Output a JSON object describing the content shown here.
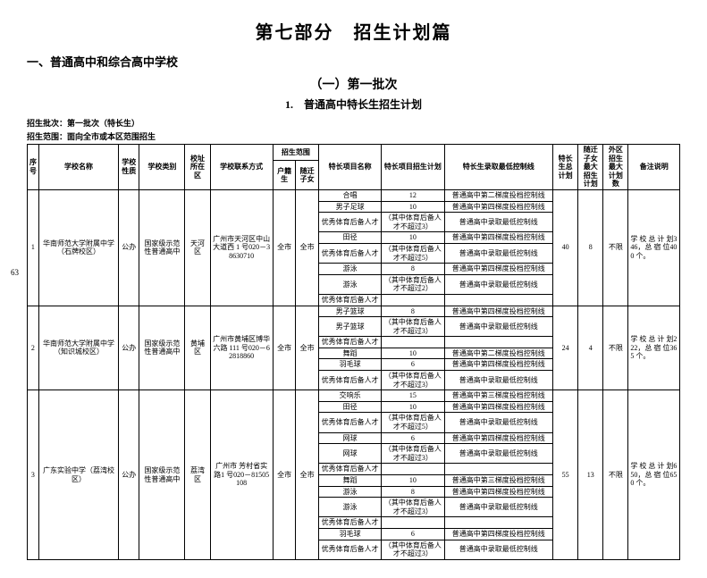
{
  "title_main": "第七部分　招生计划篇",
  "h2": "一、普通高中和综合高中学校",
  "h3": "（一）第一批次",
  "h4": "1.　普通高中特长生招生计划",
  "meta1": "招生批次：第一批次（特长生）",
  "meta2": "招生范围：面向全市或本区范围招生",
  "page_num": "63",
  "head": {
    "idx": "序号",
    "school": "学校名称",
    "nature": "学校性质",
    "type": "学校类别",
    "loc": "校址所在区",
    "contact": "学校联系方式",
    "scope": "招生范围",
    "scope_hk": "户籍生",
    "scope_sz": "随迁子女",
    "proj": "特长项目名称",
    "plan": "特长项目招生计划",
    "line": "特长生录取最低控制线",
    "total": "特长生总计划",
    "sz_max": "随迁子女最大招生计划",
    "out_max": "外区招生最大计划数",
    "note": "备注说明"
  },
  "schools": [
    {
      "idx": "1",
      "name": "华南师范大学附属中学（石牌校区）",
      "nature": "公办",
      "type": "国家级示范性普通高中",
      "loc": "天河区",
      "contact": "广州市天河区中山大道西 1 号020－38630710",
      "hk": "全市",
      "sz": "全市",
      "total": "40",
      "sz_max": "8",
      "out_max": "不限",
      "note": "学 校 总 计 划346，总 宿 位400 个。",
      "rows": [
        {
          "proj": "合唱",
          "plan": "12",
          "line": "普通高中第二梯度投档控制线"
        },
        {
          "proj": "男子足球",
          "plan": "10",
          "line": "普通高中第四梯度投档控制线"
        },
        {
          "proj": "优秀体育后备人才",
          "plan": "（其中体育后备人才不超过3）",
          "line": "普通高中录取最低控制线"
        },
        {
          "proj": "田径",
          "plan": "10",
          "line": "普通高中第四梯度投档控制线"
        },
        {
          "proj": "优秀体育后备人才",
          "plan": "（其中体育后备人才不超过5）",
          "line": "普通高中录取最低控制线"
        },
        {
          "proj": "游泳",
          "plan": "8",
          "line": "普通高中第四梯度投档控制线"
        },
        {
          "proj": "游泳",
          "plan": "（其中体育后备人才不超过2）",
          "line": "普通高中录取最低控制线"
        },
        {
          "proj": "优秀体育后备人才",
          "plan": "",
          "line": ""
        }
      ]
    },
    {
      "idx": "2",
      "name": "华南师范大学附属中学（知识城校区）",
      "nature": "公办",
      "type": "国家级示范性普通高中",
      "loc": "黄埔区",
      "contact": "广州市黄埔区博华六路 111 号020－62818860",
      "hk": "全市",
      "sz": "全市",
      "total": "24",
      "sz_max": "4",
      "out_max": "不限",
      "note": "学 校 总 计 划222，总 宿 位365 个。",
      "rows": [
        {
          "proj": "男子篮球",
          "plan": "8",
          "line": "普通高中第四梯度投档控制线"
        },
        {
          "proj": "男子篮球",
          "plan": "（其中体育后备人才不超过3）",
          "line": "普通高中录取最低控制线"
        },
        {
          "proj": "优秀体育后备人才",
          "plan": "",
          "line": ""
        },
        {
          "proj": "舞蹈",
          "plan": "10",
          "line": "普通高中第二梯度投档控制线"
        },
        {
          "proj": "羽毛球",
          "plan": "6",
          "line": "普通高中第四梯度投档控制线"
        },
        {
          "proj": "优秀体育后备人才",
          "plan": "（其中体育后备人才不超过3）",
          "line": "普通高中录取最低控制线"
        }
      ]
    },
    {
      "idx": "3",
      "name": "广东实验中学（荔湾校区）",
      "nature": "公办",
      "type": "国家级示范性普通高中",
      "loc": "荔湾区",
      "contact": "广州市 芳村省实路1 号020－81505108",
      "hk": "全市",
      "sz": "全市",
      "total": "55",
      "sz_max": "13",
      "out_max": "不限",
      "note": "学 校 总 计 划650，总 宿 位650 个。",
      "rows": [
        {
          "proj": "交响乐",
          "plan": "15",
          "line": "普通高中第三梯度投档控制线"
        },
        {
          "proj": "田径",
          "plan": "10",
          "line": "普通高中第四梯度投档控制线"
        },
        {
          "proj": "优秀体育后备人才",
          "plan": "（其中体育后备人才不超过5）",
          "line": "普通高中录取最低控制线"
        },
        {
          "proj": "网球",
          "plan": "6",
          "line": "普通高中第四梯度投档控制线"
        },
        {
          "proj": "网球",
          "plan": "（其中体育后备人才不超过3）",
          "line": "普通高中录取最低控制线"
        },
        {
          "proj": "优秀体育后备人才",
          "plan": "",
          "line": ""
        },
        {
          "proj": "舞蹈",
          "plan": "10",
          "line": "普通高中第三梯度投档控制线"
        },
        {
          "proj": "游泳",
          "plan": "8",
          "line": "普通高中第四梯度投档控制线"
        },
        {
          "proj": "游泳",
          "plan": "（其中体育后备人才不超过3）",
          "line": "普通高中录取最低控制线"
        },
        {
          "proj": "优秀体育后备人才",
          "plan": "",
          "line": ""
        },
        {
          "proj": "羽毛球",
          "plan": "6",
          "line": "普通高中第四梯度投档控制线"
        },
        {
          "proj": "优秀体育后备人才",
          "plan": "（其中体育后备人才不超过3）",
          "line": "普通高中录取最低控制线"
        }
      ]
    }
  ]
}
